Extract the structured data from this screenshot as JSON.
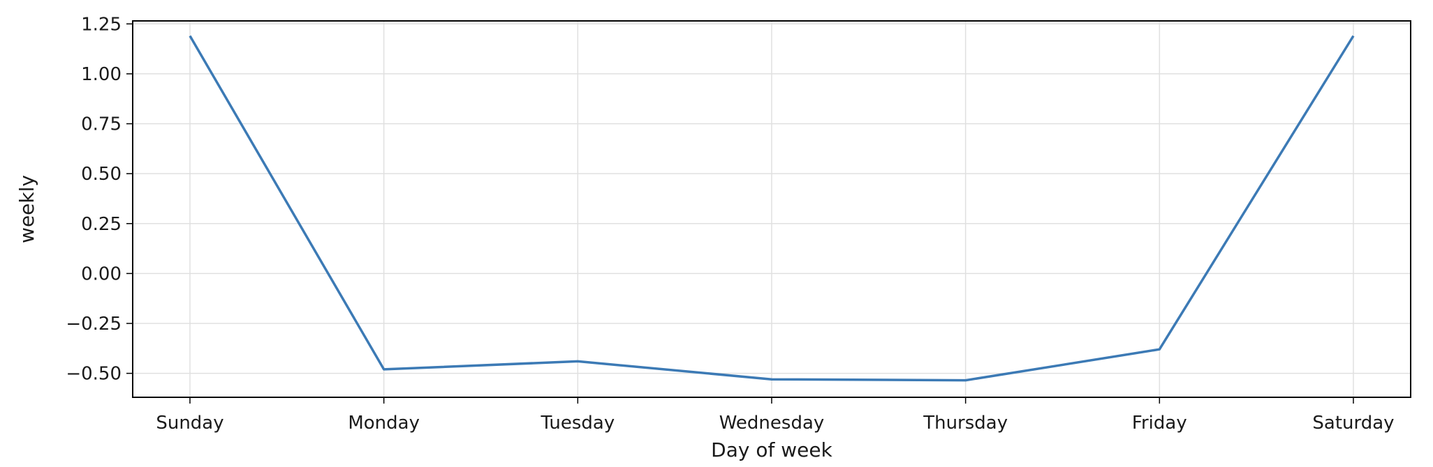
{
  "chart_data": {
    "type": "line",
    "title": "",
    "xlabel": "Day of week",
    "ylabel": "weekly",
    "categories": [
      "Sunday",
      "Monday",
      "Tuesday",
      "Wednesday",
      "Thursday",
      "Friday",
      "Saturday"
    ],
    "series": [
      {
        "color": "#3c7ab5",
        "values": [
          1.19,
          -0.48,
          -0.44,
          -0.53,
          -0.535,
          -0.38,
          1.19
        ]
      }
    ],
    "ylim": [
      -0.62,
      1.265
    ],
    "yticks": [
      -0.5,
      -0.25,
      0.0,
      0.25,
      0.5,
      0.75,
      1.0,
      1.25
    ],
    "ytick_labels": [
      "−0.50",
      "−0.25",
      "0.00",
      "0.25",
      "0.50",
      "0.75",
      "1.00",
      "1.25"
    ],
    "grid": true,
    "colors": {
      "grid": "#e0e0e0",
      "axes": "#000000",
      "text": "#1a1a1a"
    }
  }
}
